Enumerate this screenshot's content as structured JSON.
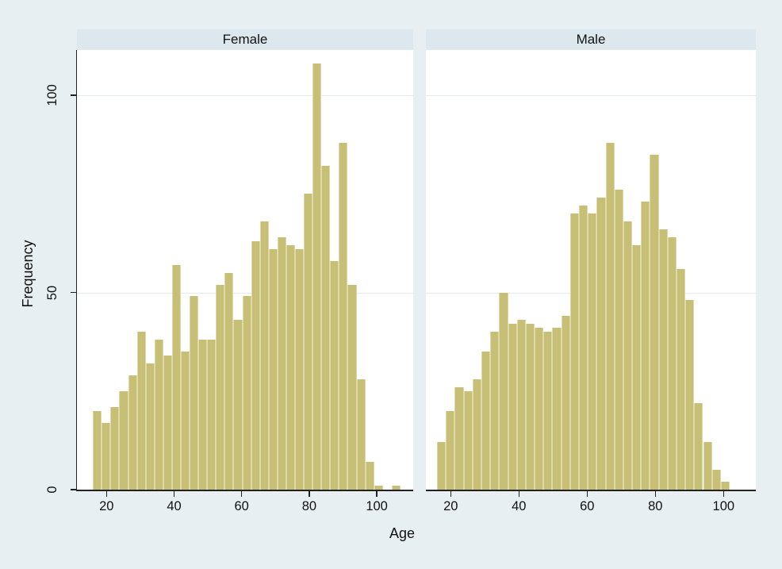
{
  "chart_data": {
    "type": "bar",
    "subtype": "faceted-histogram",
    "title": "",
    "xlabel": "Age",
    "ylabel": "Frequency",
    "x_ticks": [
      20,
      40,
      60,
      80,
      100
    ],
    "y_ticks": [
      0,
      50,
      100
    ],
    "ylim": [
      0,
      111
    ],
    "xlim": [
      11,
      110
    ],
    "grid": "horizontal gridlines at y=50 and y=100",
    "legend_position": "none",
    "bin_start_age": 16,
    "bin_width_years": 2.6,
    "panels": [
      {
        "label": "Female",
        "frequencies": [
          20,
          17,
          21,
          25,
          29,
          40,
          32,
          38,
          34,
          57,
          35,
          49,
          38,
          38,
          52,
          55,
          43,
          49,
          63,
          68,
          61,
          64,
          62,
          61,
          75,
          108,
          82,
          58,
          88,
          52,
          28,
          7,
          1,
          0,
          1
        ]
      },
      {
        "label": "Male",
        "frequencies": [
          12,
          20,
          26,
          25,
          28,
          35,
          40,
          50,
          42,
          43,
          42,
          41,
          40,
          41,
          44,
          70,
          72,
          70,
          74,
          88,
          76,
          68,
          62,
          73,
          85,
          66,
          64,
          56,
          48,
          22,
          12,
          5,
          2
        ]
      }
    ],
    "colors": {
      "bar_fill": "#c8bf77",
      "bar_edge": "#ded8ab",
      "background": "#e8eff2",
      "panel_header": "#dce8ee",
      "plot_background": "#ffffff",
      "gridline": "#e2ecf0",
      "axis": "#222222"
    }
  }
}
